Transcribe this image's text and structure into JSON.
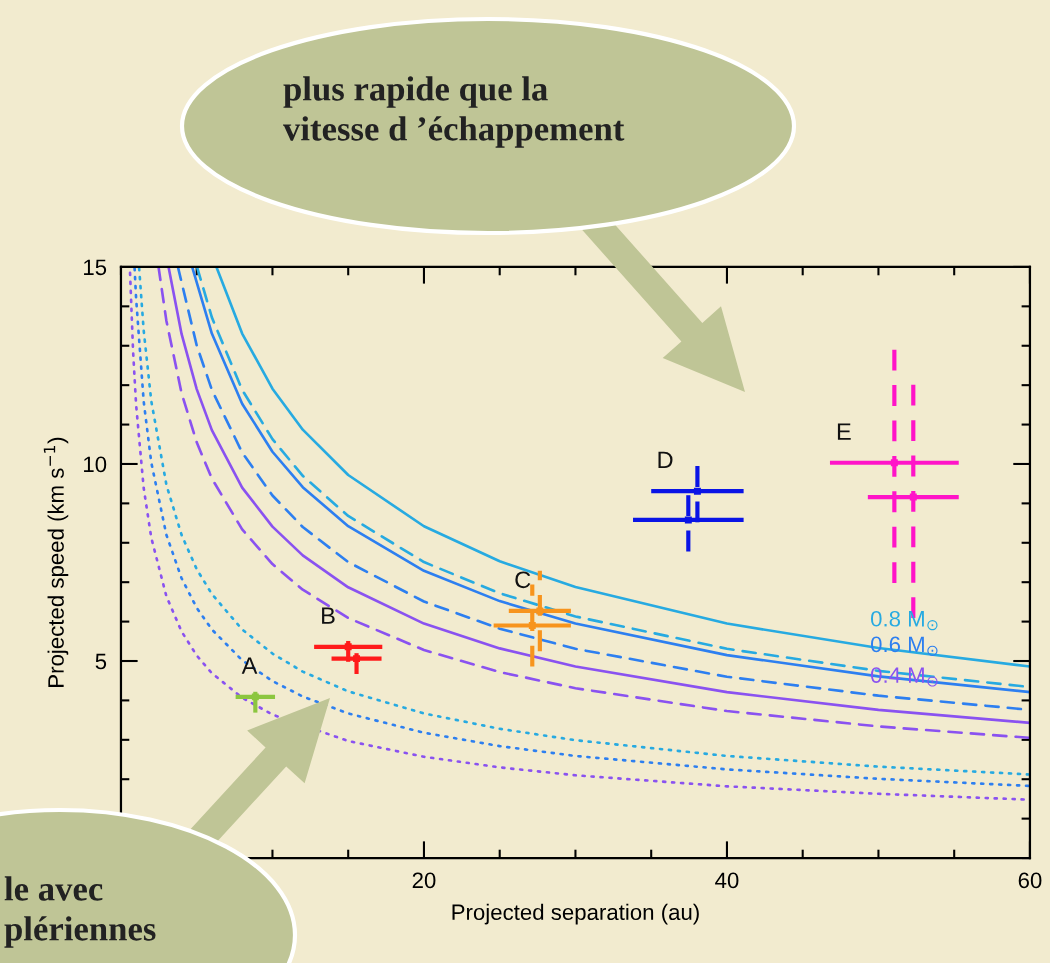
{
  "chart_data": {
    "type": "line",
    "xlabel": "Projected separation (au)",
    "ylabel": "Projected speed (km s$^{−1}$)",
    "xlim": [
      0,
      60
    ],
    "ylim": [
      0,
      15
    ],
    "xticks": [
      20,
      40,
      60
    ],
    "yticks": [
      5,
      10,
      15
    ],
    "grid": false,
    "annotations": [
      "plus rapide que la\nvitesse d ’échappement",
      "le avec\nplériennes"
    ],
    "series": [
      {
        "name": "0.8 M$_{⊙}$",
        "line_style": "solid",
        "color": "#27aae1",
        "x": [
          6.3,
          8,
          10,
          12,
          15,
          20,
          25,
          30,
          40,
          50,
          60
        ],
        "values": [
          15.0,
          13.31,
          11.91,
          10.87,
          9.72,
          8.42,
          7.53,
          6.88,
          5.95,
          5.33,
          4.86
        ]
      },
      {
        "name": "0.6 M$_{⊙}$",
        "line_style": "solid",
        "color": "#2d7ff0",
        "x": [
          4.7,
          6,
          8,
          10,
          12,
          15,
          20,
          25,
          30,
          40,
          50,
          60
        ],
        "values": [
          15.0,
          13.31,
          11.53,
          10.31,
          9.41,
          8.42,
          7.29,
          6.52,
          5.95,
          5.15,
          4.61,
          4.21
        ]
      },
      {
        "name": "0.4 M$_{⊙}$",
        "line_style": "solid",
        "color": "#8a52f0",
        "x": [
          3.14,
          4,
          5,
          6,
          8,
          10,
          12,
          15,
          20,
          25,
          30,
          40,
          50,
          60
        ],
        "values": [
          15.0,
          13.3,
          11.9,
          10.86,
          9.4,
          8.41,
          7.68,
          6.87,
          5.95,
          5.32,
          4.86,
          4.21,
          3.76,
          3.43
        ]
      },
      {
        "line_style": "dashed",
        "color": "#27aae1",
        "x": [
          5.02,
          6,
          8,
          10,
          12,
          15,
          20,
          25,
          30,
          40,
          50,
          60
        ],
        "values": [
          15.0,
          13.72,
          11.88,
          10.63,
          9.7,
          8.68,
          7.51,
          6.72,
          6.13,
          5.31,
          4.75,
          4.34
        ]
      },
      {
        "line_style": "dashed",
        "color": "#2d7ff0",
        "x": [
          3.76,
          5,
          6,
          8,
          10,
          12,
          15,
          20,
          25,
          30,
          40,
          50,
          60
        ],
        "values": [
          15.0,
          13.01,
          11.88,
          10.29,
          9.2,
          8.4,
          7.51,
          6.51,
          5.82,
          5.31,
          4.6,
          4.12,
          3.76
        ]
      },
      {
        "line_style": "dashed",
        "color": "#8a52f0",
        "x": [
          2.48,
          3,
          4,
          5,
          6,
          8,
          10,
          12,
          15,
          20,
          25,
          30,
          40,
          50,
          60
        ],
        "values": [
          15.0,
          13.63,
          11.8,
          10.55,
          9.63,
          8.34,
          7.46,
          6.81,
          6.09,
          5.28,
          4.72,
          4.31,
          3.73,
          3.34,
          3.05
        ]
      },
      {
        "line_style": "dotted",
        "color": "#27aae1",
        "x": [
          1.2,
          1.5,
          2,
          3,
          4,
          5,
          6,
          8,
          10,
          12,
          15,
          20,
          25,
          30,
          40,
          50,
          60
        ],
        "values": [
          14.97,
          13.39,
          11.6,
          9.47,
          8.2,
          7.33,
          6.7,
          5.8,
          5.19,
          4.73,
          4.23,
          3.67,
          3.28,
          2.99,
          2.59,
          2.32,
          2.12
        ]
      },
      {
        "line_style": "dotted",
        "color": "#2d7ff0",
        "x": [
          0.9,
          1,
          1.5,
          2,
          3,
          4,
          5,
          6,
          8,
          10,
          12,
          15,
          20,
          25,
          30,
          40,
          50,
          60
        ],
        "values": [
          14.97,
          14.2,
          11.59,
          10.04,
          8.2,
          7.1,
          6.35,
          5.8,
          5.02,
          4.49,
          4.1,
          3.67,
          3.18,
          2.84,
          2.59,
          2.25,
          2.01,
          1.83
        ]
      },
      {
        "line_style": "dotted",
        "color": "#8a52f0",
        "x": [
          0.6,
          0.8,
          1,
          1.5,
          2,
          3,
          4,
          5,
          6,
          8,
          10,
          15,
          20,
          25,
          30,
          40,
          50,
          60
        ],
        "values": [
          14.85,
          12.86,
          11.5,
          9.39,
          8.13,
          6.64,
          5.75,
          5.14,
          4.69,
          4.07,
          3.64,
          2.97,
          2.57,
          2.3,
          2.1,
          1.82,
          1.63,
          1.48
        ]
      },
      {
        "name": "A",
        "type": "scatter",
        "marker": "square",
        "line_style": "dashed",
        "color": "#8cc63f",
        "x": [
          8.87
        ],
        "values": [
          4.09
        ],
        "xerrors": [
          1.3
        ],
        "errors": [
          0.4
        ]
      },
      {
        "name": "B",
        "type": "scatter",
        "marker": "square",
        "line_style": "dashed",
        "color": "#ff1a1a",
        "x": [
          15.0,
          15.55
        ],
        "values": [
          5.36,
          5.06
        ],
        "xerrors": [
          2.25,
          1.65
        ],
        "errors": [
          0.38,
          0.39
        ]
      },
      {
        "name": "C",
        "type": "scatter",
        "marker": "square",
        "line_style": "dashed",
        "color": "#f7941d",
        "x": [
          27.65,
          27.15
        ],
        "values": [
          6.27,
          5.9
        ],
        "xerrors": [
          2.05,
          2.55
        ],
        "errors": [
          1.02,
          1.04
        ]
      },
      {
        "name": "D",
        "type": "scatter",
        "marker": "square",
        "line_style": "dashed",
        "color": "#0a14e6",
        "x": [
          38.05,
          37.45
        ],
        "values": [
          9.31,
          8.58
        ],
        "xerrors": [
          3.05,
          3.65
        ],
        "errors": [
          0.79,
          0.8
        ]
      },
      {
        "name": "E",
        "type": "scatter",
        "marker": "square",
        "line_style": "dashed",
        "color": "#ff14c8",
        "x": [
          51.05,
          52.3
        ],
        "values": [
          10.03,
          9.16
        ],
        "xerrors": [
          4.25,
          3.0
        ],
        "errors": [
          3.05,
          3.07
        ]
      }
    ]
  }
}
